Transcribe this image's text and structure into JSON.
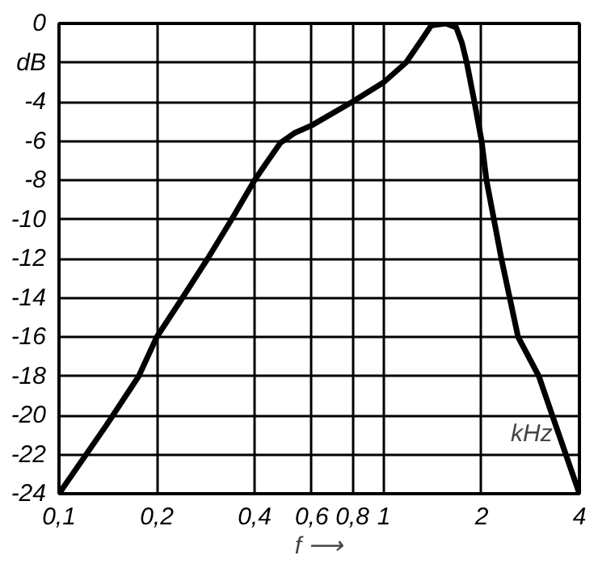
{
  "chart_data": {
    "type": "line",
    "xlabel": "f ⟶",
    "annotations": [
      "kHz"
    ],
    "log": "x",
    "grid": true,
    "marker": "none",
    "line_style": "solid",
    "xlim": [
      0.1,
      4
    ],
    "ylim": [
      -24,
      0
    ],
    "xticks": [
      {
        "value": 0.1,
        "label": "0,1"
      },
      {
        "value": 0.2,
        "label": "0,2"
      },
      {
        "value": 0.4,
        "label": "0,4"
      },
      {
        "value": 0.6,
        "label": "0,6"
      },
      {
        "value": 0.8,
        "label": "0,8"
      },
      1,
      2,
      4
    ],
    "yticks": [
      0,
      {
        "value": -2,
        "label": "dB"
      },
      -4,
      -6,
      -8,
      -10,
      -12,
      -14,
      -16,
      -18,
      -20,
      -22,
      -24
    ],
    "series": [
      {
        "color": "#000000",
        "x": [
          0.1,
          0.14,
          0.176,
          0.2,
          0.24,
          0.287,
          0.34,
          0.4,
          0.44,
          0.48,
          0.53,
          0.6,
          0.8,
          1.0,
          1.17,
          1.3,
          1.4,
          1.55,
          1.67,
          1.74,
          1.8,
          1.9,
          2.0,
          2.07,
          2.3,
          2.59,
          3.0,
          3.3,
          4.0
        ],
        "values": [
          -24,
          -20.5,
          -18,
          -16,
          -14,
          -12,
          -10,
          -8,
          -7,
          -6.1,
          -5.6,
          -5.2,
          -4,
          -3,
          -2,
          -0.9,
          -0.1,
          0,
          -0.2,
          -1,
          -2,
          -4,
          -6,
          -8,
          -12,
          -16,
          -18,
          -20,
          -24
        ]
      }
    ]
  }
}
